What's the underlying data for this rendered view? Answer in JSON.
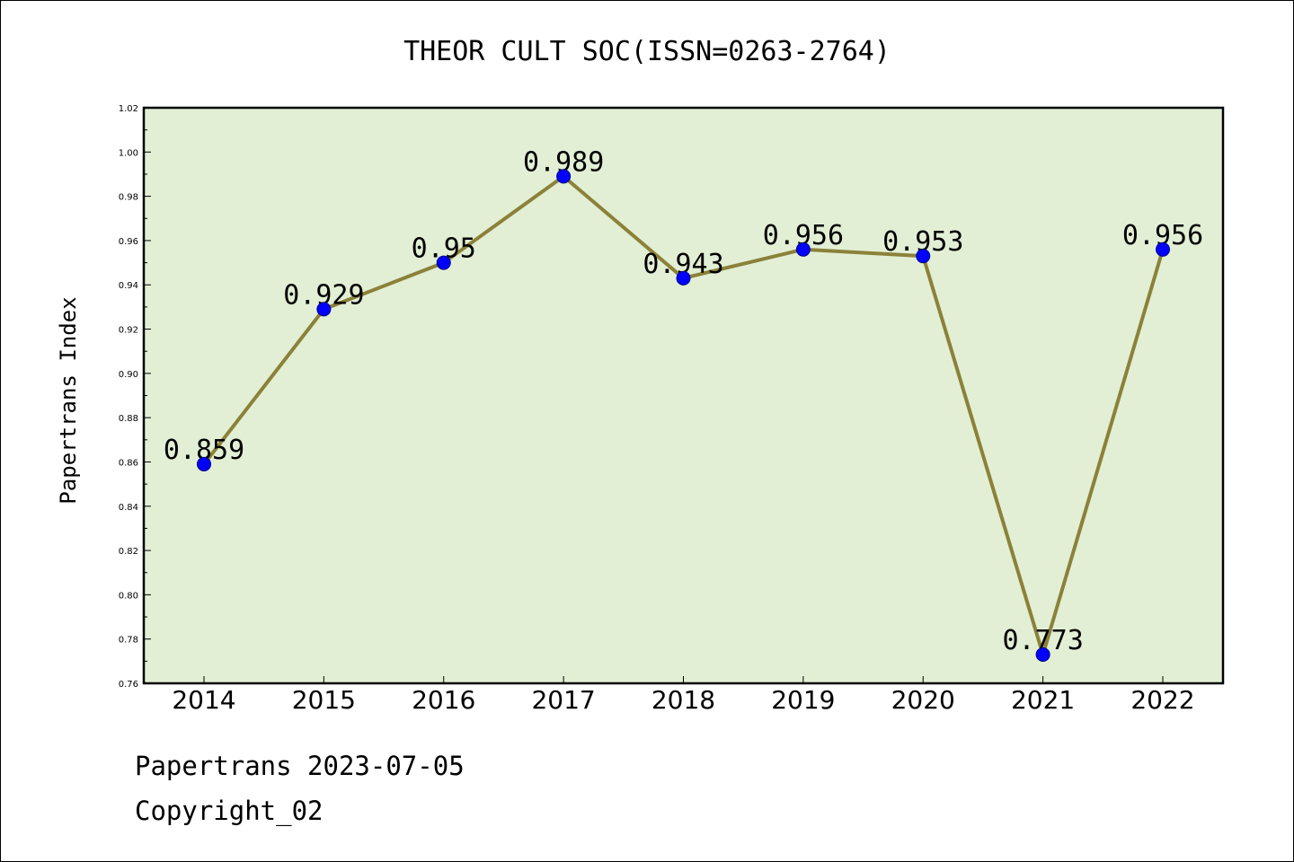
{
  "footer": {
    "date_line": "Papertrans 2023-07-05",
    "copyright": "Copyright_02"
  },
  "colors": {
    "plot_background": "#e2efd5",
    "line": "#8b8139",
    "marker_fill": "#0000ff",
    "marker_edge": "#00008b",
    "axis": "#000000"
  },
  "chart_data": {
    "type": "line",
    "title": "THEOR CULT SOC(ISSN=0263-2764)",
    "xlabel": "",
    "ylabel": "Papertrans Index",
    "categories": [
      "2014",
      "2015",
      "2016",
      "2017",
      "2018",
      "2019",
      "2020",
      "2021",
      "2022"
    ],
    "values": [
      0.859,
      0.929,
      0.95,
      0.989,
      0.943,
      0.956,
      0.953,
      0.773,
      0.956
    ],
    "data_labels": [
      "0.859",
      "0.929",
      "0.95",
      "0.989",
      "0.943",
      "0.956",
      "0.953",
      "0.773",
      "0.956"
    ],
    "ylim": [
      0.76,
      1.02
    ],
    "yticks": [
      0.76,
      0.78,
      0.8,
      0.82,
      0.84,
      0.86,
      0.88,
      0.9,
      0.92,
      0.94,
      0.96,
      0.98,
      1.0,
      1.02
    ],
    "ytick_labels": [
      "0.76",
      "0.78",
      "0.80",
      "0.82",
      "0.84",
      "0.86",
      "0.88",
      "0.90",
      "0.92",
      "0.94",
      "0.96",
      "0.98",
      "1.00",
      "1.02"
    ],
    "grid": false,
    "legend": "none"
  }
}
